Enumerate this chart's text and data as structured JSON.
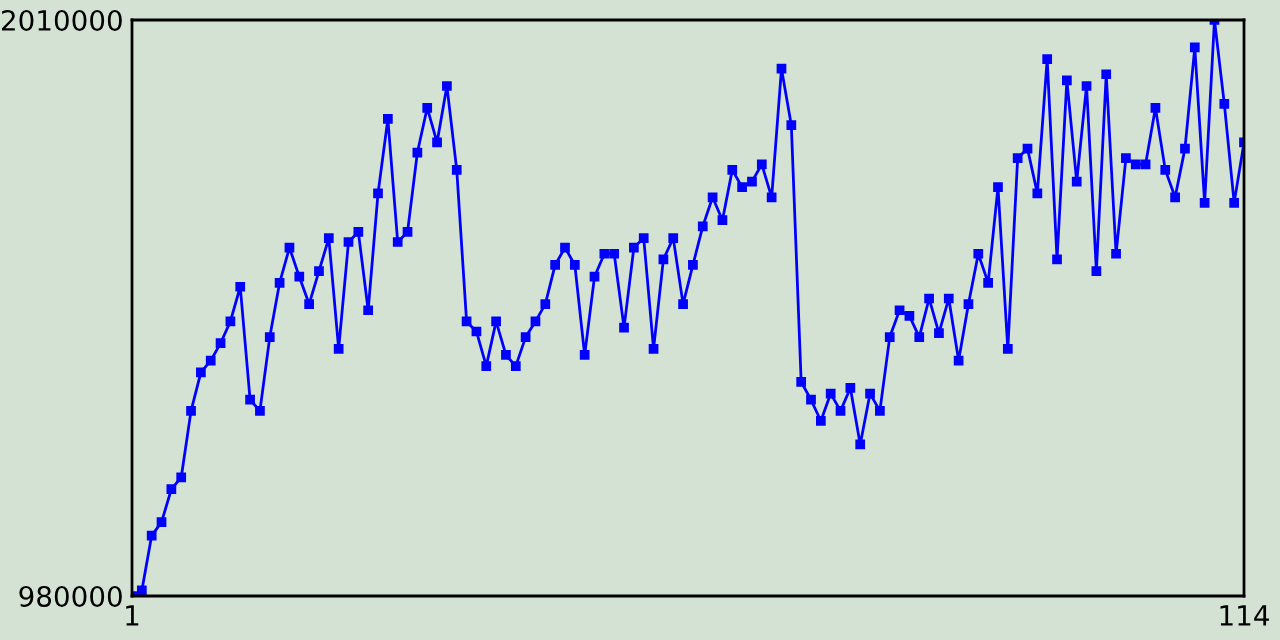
{
  "chart_data": {
    "type": "line",
    "x": [
      1,
      2,
      3,
      4,
      5,
      6,
      7,
      8,
      9,
      10,
      11,
      12,
      13,
      14,
      15,
      16,
      17,
      18,
      19,
      20,
      21,
      22,
      23,
      24,
      25,
      26,
      27,
      28,
      29,
      30,
      31,
      32,
      33,
      34,
      35,
      36,
      37,
      38,
      39,
      40,
      41,
      42,
      43,
      44,
      45,
      46,
      47,
      48,
      49,
      50,
      51,
      52,
      53,
      54,
      55,
      56,
      57,
      58,
      59,
      60,
      61,
      62,
      63,
      64,
      65,
      66,
      67,
      68,
      69,
      70,
      71,
      72,
      73,
      74,
      75,
      76,
      77,
      78,
      79,
      80,
      81,
      82,
      83,
      84,
      85,
      86,
      87,
      88,
      89,
      90,
      91,
      92,
      93,
      94,
      95,
      96,
      97,
      98,
      99,
      100,
      101,
      102,
      103,
      104,
      105,
      106,
      107,
      108,
      109,
      110,
      111,
      112,
      113,
      114
    ],
    "series": [
      {
        "color": "#0000ff",
        "values": [
          980000,
          990000,
          1088000,
          1112000,
          1171000,
          1192000,
          1311000,
          1380000,
          1401000,
          1432000,
          1471000,
          1533000,
          1331000,
          1311000,
          1443000,
          1540000,
          1603000,
          1551000,
          1502000,
          1561000,
          1620000,
          1422000,
          1613000,
          1631000,
          1491000,
          1700000,
          1833000,
          1613000,
          1631000,
          1773000,
          1853000,
          1791000,
          1892000,
          1742000,
          1471000,
          1453000,
          1391000,
          1471000,
          1411000,
          1391000,
          1443000,
          1471000,
          1502000,
          1572000,
          1603000,
          1572000,
          1411000,
          1551000,
          1592000,
          1592000,
          1460000,
          1603000,
          1620000,
          1422000,
          1582000,
          1620000,
          1502000,
          1572000,
          1641000,
          1693000,
          1652000,
          1742000,
          1711000,
          1721000,
          1752000,
          1693000,
          1923000,
          1822000,
          1363000,
          1331000,
          1293000,
          1342000,
          1311000,
          1352000,
          1251000,
          1342000,
          1311000,
          1443000,
          1491000,
          1481000,
          1443000,
          1512000,
          1450000,
          1512000,
          1401000,
          1502000,
          1592000,
          1540000,
          1711000,
          1422000,
          1763000,
          1780000,
          1700000,
          1940000,
          1582000,
          1902000,
          1721000,
          1892000,
          1561000,
          1913000,
          1592000,
          1763000,
          1752000,
          1752000,
          1853000,
          1742000,
          1693000,
          1780000,
          1961000,
          1683000,
          2010000,
          1860000,
          1683000,
          1791000
        ]
      }
    ],
    "xlim": [
      1,
      114
    ],
    "xticks": [
      1,
      114
    ],
    "ylim": [
      980000,
      2010000
    ],
    "yticks": [
      980000,
      2010000
    ],
    "marker": "square",
    "line_style": "solid"
  }
}
